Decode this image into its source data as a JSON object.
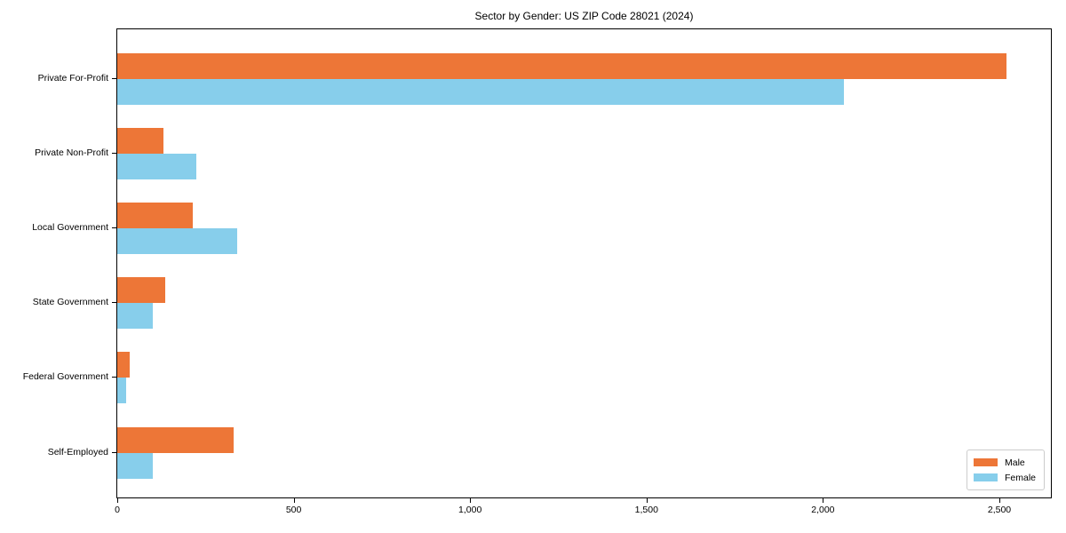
{
  "chart_data": {
    "type": "bar",
    "orientation": "horizontal",
    "title": "Sector by Gender: US ZIP Code 28021 (2024)",
    "categories": [
      "Private For-Profit",
      "Private Non-Profit",
      "Local Government",
      "State Government",
      "Federal Government",
      "Self-Employed"
    ],
    "series": [
      {
        "name": "Male",
        "color": "#ED7637",
        "values": [
          2520,
          130,
          215,
          135,
          35,
          330
        ]
      },
      {
        "name": "Female",
        "color": "#87CEEB",
        "values": [
          2060,
          225,
          340,
          100,
          25,
          100
        ]
      }
    ],
    "xlabel": "",
    "ylabel": "",
    "xlim": [
      0,
      2646
    ],
    "xticks": [
      0,
      500,
      1000,
      1500,
      2000,
      2500
    ],
    "xtick_labels": [
      "0",
      "500",
      "1,000",
      "1,500",
      "2,000",
      "2,500"
    ],
    "grid": false,
    "legend_position": "lower right",
    "axis_color": "#000000",
    "background_color": "#ffffff"
  }
}
